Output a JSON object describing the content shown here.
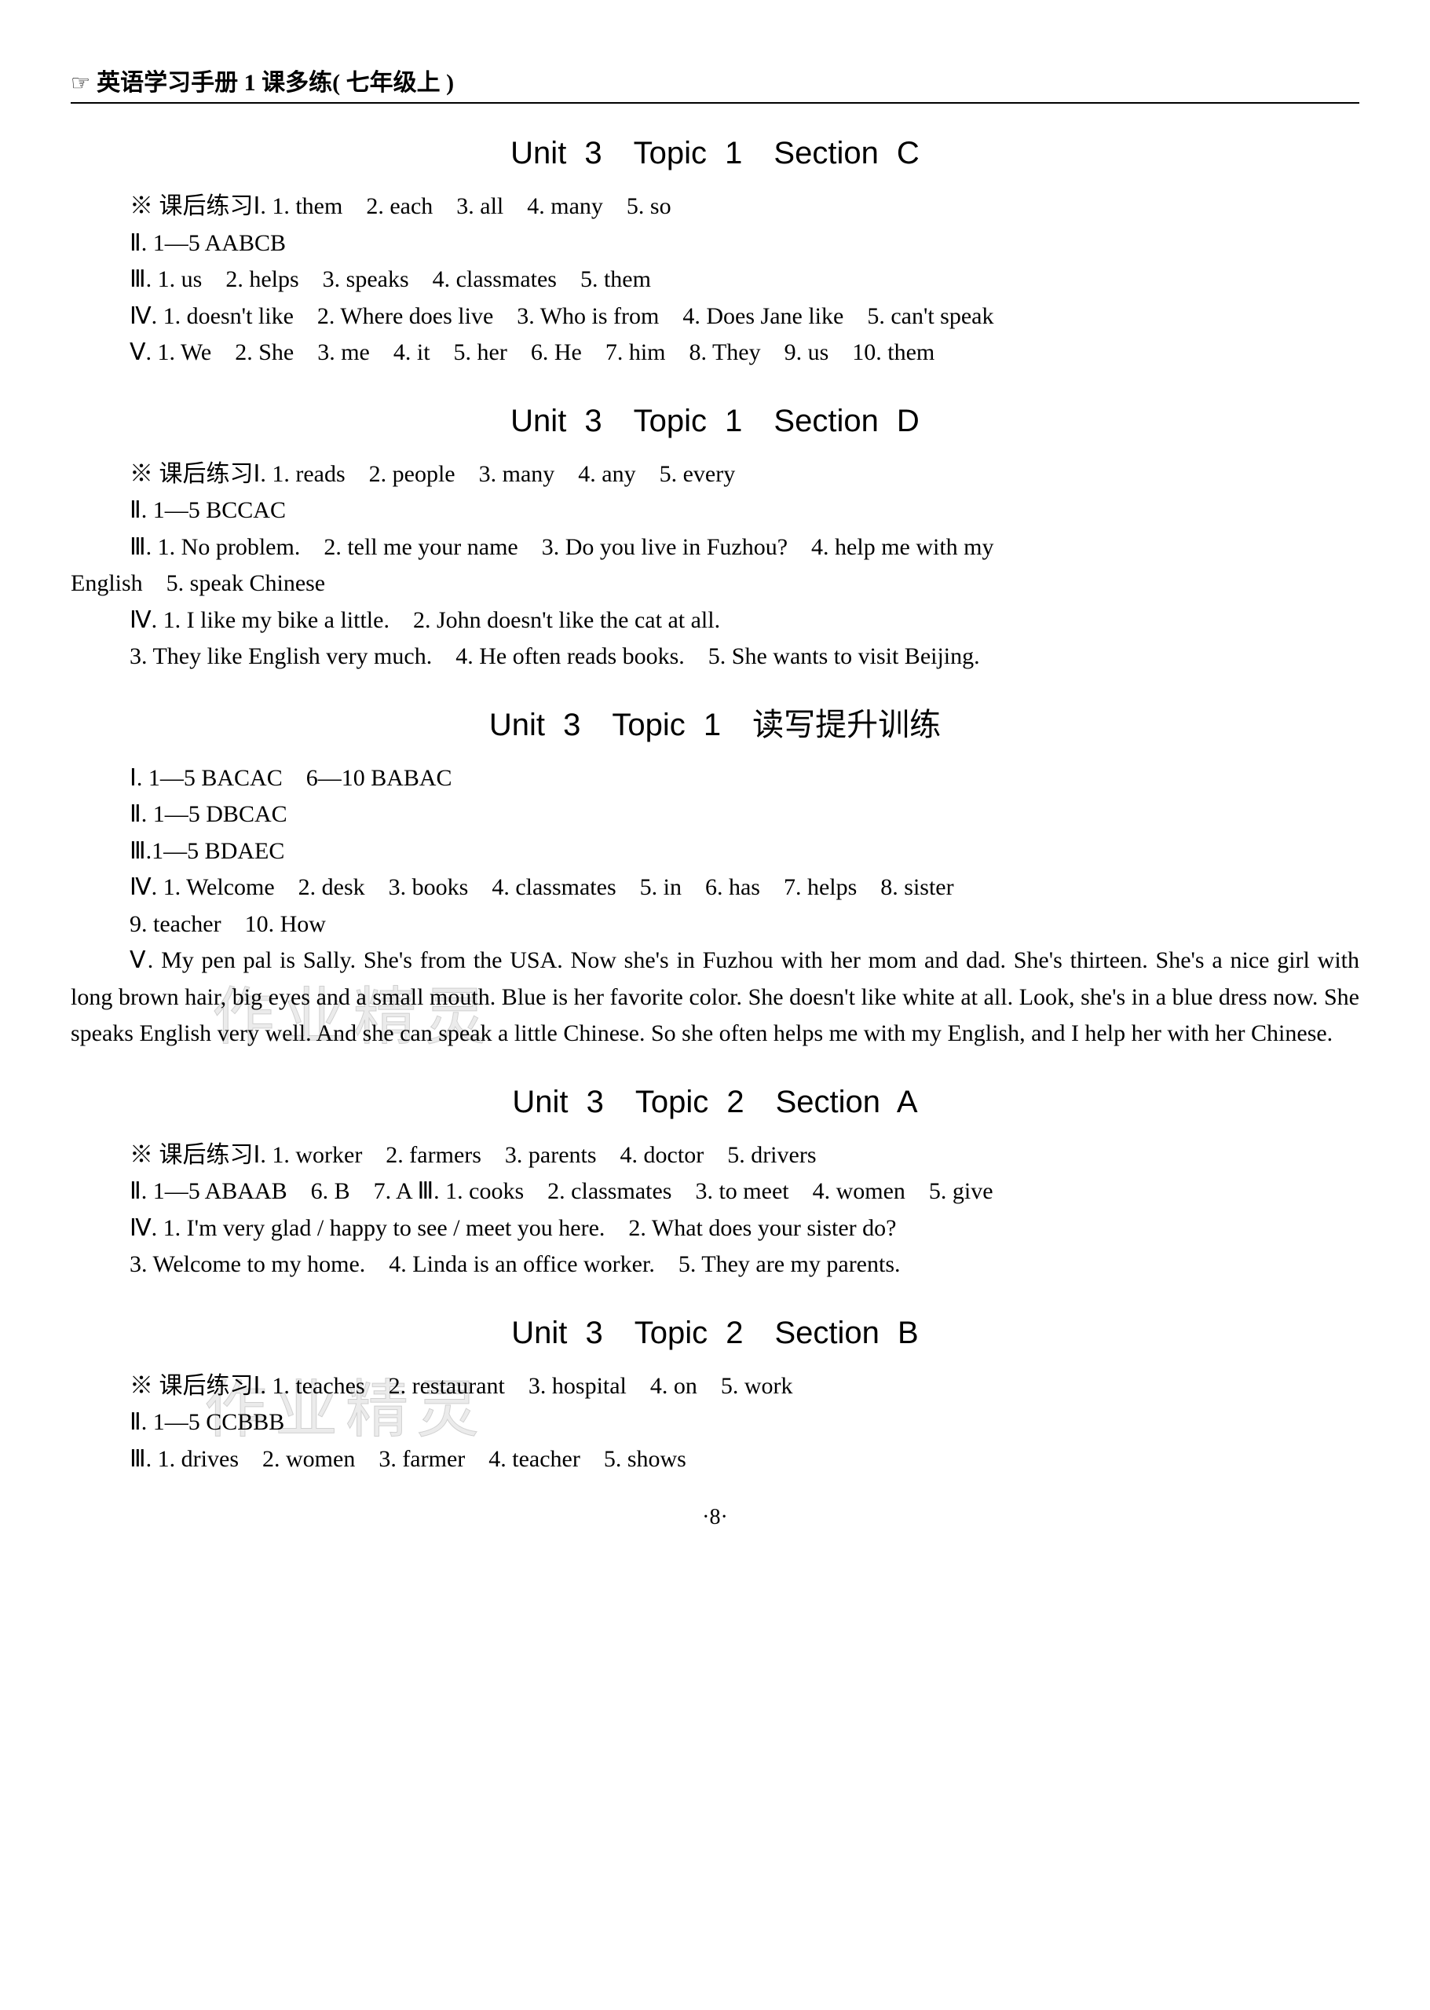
{
  "header": {
    "icon": "☞",
    "text": "英语学习手册 1 课多练( 七年级上 )"
  },
  "watermarks": {
    "w1": "作业精灵",
    "w2": "作业精灵"
  },
  "sections": [
    {
      "title": "Unit 3　Topic 1　Section C",
      "lines": [
        "※ 课后练习Ⅰ. 1. them　2. each　3. all　4. many　5. so",
        "Ⅱ. 1—5 AABCB",
        "Ⅲ. 1. us　2. helps　3. speaks　4. classmates　5. them",
        "Ⅳ. 1. doesn't like　2. Where does live　3. Who is from　4. Does Jane like　5. can't speak",
        "Ⅴ. 1. We　2. She　3. me　4. it　5. her　6. He　7. him　8. They　9. us　10. them"
      ]
    },
    {
      "title": "Unit 3　Topic 1　Section D",
      "lines": [
        "※ 课后练习Ⅰ. 1. reads　2. people　3. many　4. any　5. every",
        "Ⅱ. 1—5 BCCAC",
        "Ⅲ. 1. No problem.　2. tell me your name　3. Do you live in Fuzhou?　4. help me with my"
      ],
      "lines_noindent": [
        "English　5. speak Chinese"
      ],
      "lines2": [
        "Ⅳ. 1. I like my bike a little.　2. John doesn't like the cat at all.",
        "3. They like English very much.　4. He often reads books.　5. She wants to visit Beijing."
      ]
    },
    {
      "title": "Unit 3　Topic 1　读写提升训练",
      "lines": [
        "Ⅰ. 1—5 BACAC　6—10 BABAC",
        "Ⅱ. 1—5 DBCAC",
        "Ⅲ.1—5 BDAEC",
        "Ⅳ. 1. Welcome　2. desk　3. books　4. classmates　5. in　6. has　7. helps　8. sister",
        "9. teacher　10. How"
      ],
      "paragraph": "Ⅴ. My pen pal is Sally. She's from the USA. Now she's in Fuzhou with her mom and dad. She's thirteen. She's a nice girl with long brown hair, big eyes and a small mouth. Blue is her favorite color. She doesn't like white at all. Look, she's in a blue dress now. She speaks English very well. And she can speak a little Chinese. So she often helps me with my English, and I help her with her Chinese."
    },
    {
      "title": "Unit 3　Topic 2　Section A",
      "lines": [
        "※ 课后练习Ⅰ. 1. worker　2. farmers　3. parents　4. doctor　5. drivers",
        "Ⅱ. 1—5 ABAAB　6. B　7. A Ⅲ. 1. cooks　2. classmates　3. to meet　4. women　5. give",
        "Ⅳ. 1. I'm very glad / happy to see / meet you here.　2. What does your sister do?",
        "3. Welcome to my home.　4. Linda is an office worker.　5. They are my parents."
      ]
    },
    {
      "title": "Unit 3　Topic 2　Section B",
      "lines": [
        "※ 课后练习Ⅰ. 1. teaches　2. restaurant　3. hospital　4. on　5. work",
        "Ⅱ. 1—5 CCBBB",
        "Ⅲ. 1. drives　2. women　3. farmer　4. teacher　5. shows"
      ]
    }
  ],
  "pageNumber": "·8·"
}
